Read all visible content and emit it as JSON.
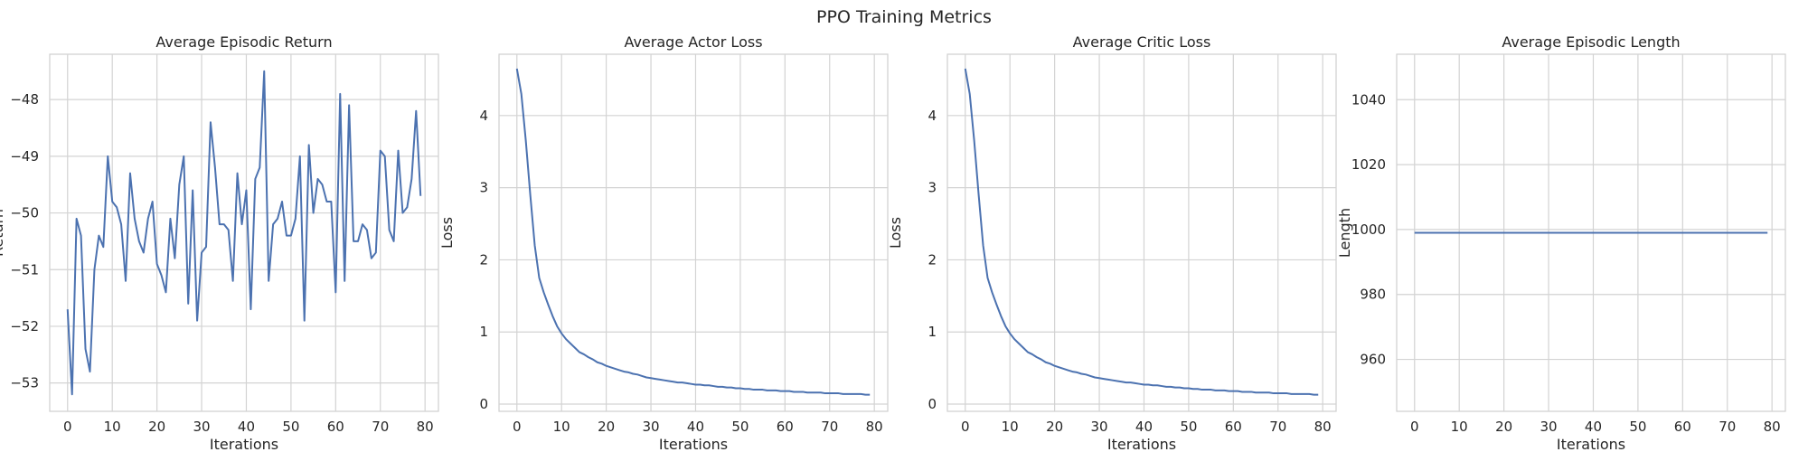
{
  "figure": {
    "title": "PPO Training Metrics",
    "line_color": "#4c72b0"
  },
  "chart_data": [
    {
      "type": "line",
      "title": "Average Episodic Return",
      "xlabel": "Iterations",
      "ylabel": "Return",
      "grid": true,
      "xlim": [
        -4,
        83
      ],
      "ylim": [
        -53.5,
        -47.2
      ],
      "xticks": [
        0,
        10,
        20,
        30,
        40,
        50,
        60,
        70,
        80
      ],
      "yticks": [
        -53,
        -52,
        -51,
        -50,
        -49,
        -48
      ],
      "series": [
        {
          "x": [
            0,
            1,
            2,
            3,
            4,
            5,
            6,
            7,
            8,
            9,
            10,
            11,
            12,
            13,
            14,
            15,
            16,
            17,
            18,
            19,
            20,
            21,
            22,
            23,
            24,
            25,
            26,
            27,
            28,
            29,
            30,
            31,
            32,
            33,
            34,
            35,
            36,
            37,
            38,
            39,
            40,
            41,
            42,
            43,
            44,
            45,
            46,
            47,
            48,
            49,
            50,
            51,
            52,
            53,
            54,
            55,
            56,
            57,
            58,
            59,
            60,
            61,
            62,
            63,
            64,
            65,
            66,
            67,
            68,
            69,
            70,
            71,
            72,
            73,
            74,
            75,
            76,
            77,
            78,
            79
          ],
          "y": [
            -51.7,
            -53.2,
            -50.1,
            -50.4,
            -52.4,
            -52.8,
            -51.0,
            -50.4,
            -50.6,
            -49.0,
            -49.8,
            -49.9,
            -50.2,
            -51.2,
            -49.3,
            -50.1,
            -50.5,
            -50.7,
            -50.1,
            -49.8,
            -50.9,
            -51.1,
            -51.4,
            -50.1,
            -50.8,
            -49.5,
            -49.0,
            -51.6,
            -49.6,
            -51.9,
            -50.7,
            -50.6,
            -48.4,
            -49.2,
            -50.2,
            -50.2,
            -50.3,
            -51.2,
            -49.3,
            -50.2,
            -49.6,
            -51.7,
            -49.4,
            -49.2,
            -47.5,
            -51.2,
            -50.2,
            -50.1,
            -49.8,
            -50.4,
            -50.4,
            -50.1,
            -49.0,
            -51.9,
            -48.8,
            -50.0,
            -49.4,
            -49.5,
            -49.8,
            -49.8,
            -51.4,
            -47.9,
            -51.2,
            -48.1,
            -50.5,
            -50.5,
            -50.2,
            -50.3,
            -50.8,
            -50.7,
            -48.9,
            -49.0,
            -50.3,
            -50.5,
            -48.9,
            -50.0,
            -49.9,
            -49.4,
            -48.2,
            -49.7
          ]
        }
      ]
    },
    {
      "type": "line",
      "title": "Average Actor Loss",
      "xlabel": "Iterations",
      "ylabel": "Loss",
      "grid": true,
      "xlim": [
        -4,
        83
      ],
      "ylim": [
        -0.1,
        4.85
      ],
      "xticks": [
        0,
        10,
        20,
        30,
        40,
        50,
        60,
        70,
        80
      ],
      "yticks": [
        0,
        1,
        2,
        3,
        4
      ],
      "series": [
        {
          "x": [
            0,
            1,
            2,
            3,
            4,
            5,
            6,
            7,
            8,
            9,
            10,
            11,
            12,
            13,
            14,
            15,
            16,
            17,
            18,
            19,
            20,
            21,
            22,
            23,
            24,
            25,
            26,
            27,
            28,
            29,
            30,
            31,
            32,
            33,
            34,
            35,
            36,
            37,
            38,
            39,
            40,
            41,
            42,
            43,
            44,
            45,
            46,
            47,
            48,
            49,
            50,
            51,
            52,
            53,
            54,
            55,
            56,
            57,
            58,
            59,
            60,
            61,
            62,
            63,
            64,
            65,
            66,
            67,
            68,
            69,
            70,
            71,
            72,
            73,
            74,
            75,
            76,
            77,
            78,
            79
          ],
          "y": [
            4.65,
            4.3,
            3.65,
            2.9,
            2.2,
            1.75,
            1.55,
            1.38,
            1.22,
            1.08,
            0.98,
            0.9,
            0.84,
            0.78,
            0.72,
            0.69,
            0.65,
            0.62,
            0.58,
            0.56,
            0.53,
            0.51,
            0.49,
            0.47,
            0.45,
            0.44,
            0.42,
            0.41,
            0.39,
            0.37,
            0.36,
            0.35,
            0.34,
            0.33,
            0.32,
            0.31,
            0.3,
            0.3,
            0.29,
            0.28,
            0.27,
            0.27,
            0.26,
            0.26,
            0.25,
            0.24,
            0.24,
            0.23,
            0.23,
            0.22,
            0.22,
            0.21,
            0.21,
            0.2,
            0.2,
            0.2,
            0.19,
            0.19,
            0.19,
            0.18,
            0.18,
            0.18,
            0.17,
            0.17,
            0.17,
            0.16,
            0.16,
            0.16,
            0.16,
            0.15,
            0.15,
            0.15,
            0.15,
            0.14,
            0.14,
            0.14,
            0.14,
            0.14,
            0.13,
            0.13
          ]
        }
      ]
    },
    {
      "type": "line",
      "title": "Average Critic Loss",
      "xlabel": "Iterations",
      "ylabel": "Loss",
      "grid": true,
      "xlim": [
        -4,
        83
      ],
      "ylim": [
        -0.1,
        4.85
      ],
      "xticks": [
        0,
        10,
        20,
        30,
        40,
        50,
        60,
        70,
        80
      ],
      "yticks": [
        0,
        1,
        2,
        3,
        4
      ],
      "series": [
        {
          "x": [
            0,
            1,
            2,
            3,
            4,
            5,
            6,
            7,
            8,
            9,
            10,
            11,
            12,
            13,
            14,
            15,
            16,
            17,
            18,
            19,
            20,
            21,
            22,
            23,
            24,
            25,
            26,
            27,
            28,
            29,
            30,
            31,
            32,
            33,
            34,
            35,
            36,
            37,
            38,
            39,
            40,
            41,
            42,
            43,
            44,
            45,
            46,
            47,
            48,
            49,
            50,
            51,
            52,
            53,
            54,
            55,
            56,
            57,
            58,
            59,
            60,
            61,
            62,
            63,
            64,
            65,
            66,
            67,
            68,
            69,
            70,
            71,
            72,
            73,
            74,
            75,
            76,
            77,
            78,
            79
          ],
          "y": [
            4.65,
            4.3,
            3.65,
            2.9,
            2.2,
            1.75,
            1.55,
            1.38,
            1.22,
            1.08,
            0.98,
            0.9,
            0.84,
            0.78,
            0.72,
            0.69,
            0.65,
            0.62,
            0.58,
            0.56,
            0.53,
            0.51,
            0.49,
            0.47,
            0.45,
            0.44,
            0.42,
            0.41,
            0.39,
            0.37,
            0.36,
            0.35,
            0.34,
            0.33,
            0.32,
            0.31,
            0.3,
            0.3,
            0.29,
            0.28,
            0.27,
            0.27,
            0.26,
            0.26,
            0.25,
            0.24,
            0.24,
            0.23,
            0.23,
            0.22,
            0.22,
            0.21,
            0.21,
            0.2,
            0.2,
            0.2,
            0.19,
            0.19,
            0.19,
            0.18,
            0.18,
            0.18,
            0.17,
            0.17,
            0.17,
            0.16,
            0.16,
            0.16,
            0.16,
            0.15,
            0.15,
            0.15,
            0.15,
            0.14,
            0.14,
            0.14,
            0.14,
            0.14,
            0.13,
            0.13
          ]
        }
      ]
    },
    {
      "type": "line",
      "title": "Average Episodic Length",
      "xlabel": "Iterations",
      "ylabel": "Length",
      "grid": true,
      "xlim": [
        -4,
        83
      ],
      "ylim": [
        944,
        1054
      ],
      "xticks": [
        0,
        10,
        20,
        30,
        40,
        50,
        60,
        70,
        80
      ],
      "yticks": [
        960,
        980,
        1000,
        1020,
        1040
      ],
      "series": [
        {
          "x": [
            0,
            1,
            2,
            3,
            4,
            5,
            6,
            7,
            8,
            9,
            10,
            11,
            12,
            13,
            14,
            15,
            16,
            17,
            18,
            19,
            20,
            21,
            22,
            23,
            24,
            25,
            26,
            27,
            28,
            29,
            30,
            31,
            32,
            33,
            34,
            35,
            36,
            37,
            38,
            39,
            40,
            41,
            42,
            43,
            44,
            45,
            46,
            47,
            48,
            49,
            50,
            51,
            52,
            53,
            54,
            55,
            56,
            57,
            58,
            59,
            60,
            61,
            62,
            63,
            64,
            65,
            66,
            67,
            68,
            69,
            70,
            71,
            72,
            73,
            74,
            75,
            76,
            77,
            78,
            79
          ],
          "y": [
            999,
            999,
            999,
            999,
            999,
            999,
            999,
            999,
            999,
            999,
            999,
            999,
            999,
            999,
            999,
            999,
            999,
            999,
            999,
            999,
            999,
            999,
            999,
            999,
            999,
            999,
            999,
            999,
            999,
            999,
            999,
            999,
            999,
            999,
            999,
            999,
            999,
            999,
            999,
            999,
            999,
            999,
            999,
            999,
            999,
            999,
            999,
            999,
            999,
            999,
            999,
            999,
            999,
            999,
            999,
            999,
            999,
            999,
            999,
            999,
            999,
            999,
            999,
            999,
            999,
            999,
            999,
            999,
            999,
            999,
            999,
            999,
            999,
            999,
            999,
            999,
            999,
            999,
            999,
            999
          ]
        }
      ]
    }
  ]
}
